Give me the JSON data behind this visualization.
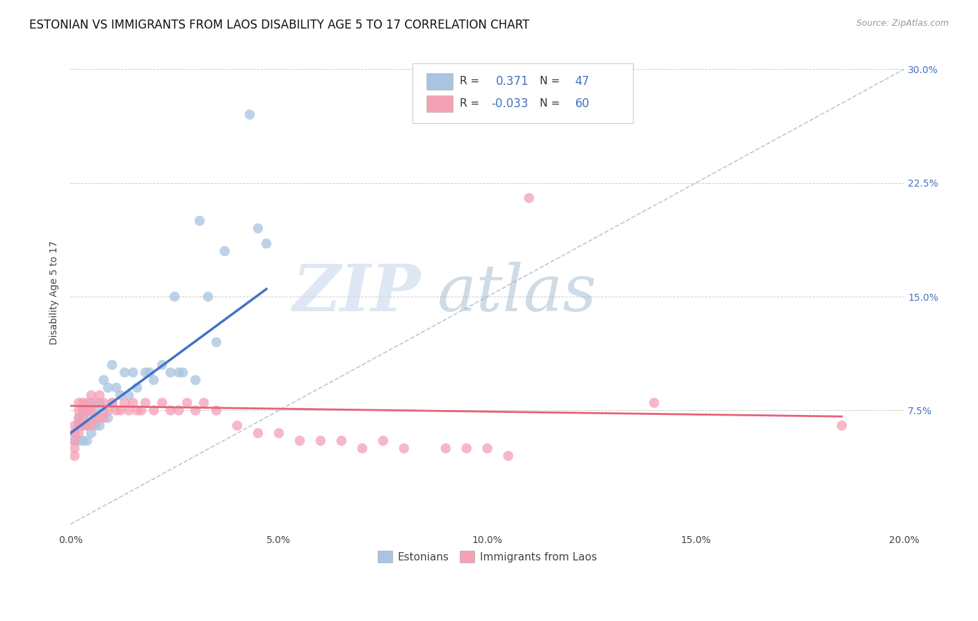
{
  "title": "ESTONIAN VS IMMIGRANTS FROM LAOS DISABILITY AGE 5 TO 17 CORRELATION CHART",
  "source": "Source: ZipAtlas.com",
  "ylabel": "Disability Age 5 to 17",
  "xlabel": "",
  "xlim": [
    0.0,
    0.2
  ],
  "ylim": [
    -0.005,
    0.31
  ],
  "R_estonian": 0.371,
  "N_estonian": 47,
  "R_laos": -0.033,
  "N_laos": 60,
  "color_estonian": "#a8c4e0",
  "color_laos": "#f4a0b5",
  "line_color_estonian": "#4472c4",
  "line_color_laos": "#e8607a",
  "line_color_diagonal": "#b8c8d8",
  "background_color": "#ffffff",
  "title_fontsize": 12,
  "label_fontsize": 10,
  "tick_fontsize": 10,
  "watermark_zip": "ZIP",
  "watermark_atlas": "atlas",
  "estonian_x": [
    0.001,
    0.001,
    0.002,
    0.002,
    0.002,
    0.003,
    0.003,
    0.003,
    0.003,
    0.004,
    0.004,
    0.004,
    0.005,
    0.005,
    0.005,
    0.006,
    0.006,
    0.007,
    0.007,
    0.008,
    0.008,
    0.009,
    0.009,
    0.01,
    0.01,
    0.011,
    0.012,
    0.013,
    0.014,
    0.015,
    0.016,
    0.018,
    0.019,
    0.02,
    0.022,
    0.024,
    0.025,
    0.026,
    0.027,
    0.03,
    0.031,
    0.033,
    0.035,
    0.037,
    0.043,
    0.045,
    0.047
  ],
  "estonian_y": [
    0.06,
    0.055,
    0.07,
    0.065,
    0.055,
    0.075,
    0.07,
    0.065,
    0.055,
    0.075,
    0.065,
    0.055,
    0.08,
    0.07,
    0.06,
    0.075,
    0.065,
    0.08,
    0.065,
    0.095,
    0.075,
    0.09,
    0.07,
    0.105,
    0.08,
    0.09,
    0.085,
    0.1,
    0.085,
    0.1,
    0.09,
    0.1,
    0.1,
    0.095,
    0.105,
    0.1,
    0.15,
    0.1,
    0.1,
    0.095,
    0.2,
    0.15,
    0.12,
    0.18,
    0.27,
    0.195,
    0.185
  ],
  "laos_x": [
    0.001,
    0.001,
    0.001,
    0.001,
    0.001,
    0.002,
    0.002,
    0.002,
    0.002,
    0.002,
    0.003,
    0.003,
    0.003,
    0.003,
    0.004,
    0.004,
    0.004,
    0.005,
    0.005,
    0.005,
    0.006,
    0.006,
    0.007,
    0.007,
    0.008,
    0.008,
    0.009,
    0.01,
    0.011,
    0.012,
    0.013,
    0.014,
    0.015,
    0.016,
    0.017,
    0.018,
    0.02,
    0.022,
    0.024,
    0.026,
    0.028,
    0.03,
    0.032,
    0.035,
    0.04,
    0.045,
    0.05,
    0.055,
    0.06,
    0.065,
    0.07,
    0.075,
    0.08,
    0.09,
    0.095,
    0.1,
    0.105,
    0.11,
    0.14,
    0.185
  ],
  "laos_y": [
    0.065,
    0.06,
    0.055,
    0.05,
    0.045,
    0.08,
    0.075,
    0.07,
    0.065,
    0.06,
    0.08,
    0.075,
    0.07,
    0.065,
    0.08,
    0.075,
    0.065,
    0.085,
    0.075,
    0.065,
    0.08,
    0.07,
    0.085,
    0.07,
    0.08,
    0.07,
    0.075,
    0.08,
    0.075,
    0.075,
    0.08,
    0.075,
    0.08,
    0.075,
    0.075,
    0.08,
    0.075,
    0.08,
    0.075,
    0.075,
    0.08,
    0.075,
    0.08,
    0.075,
    0.065,
    0.06,
    0.06,
    0.055,
    0.055,
    0.055,
    0.05,
    0.055,
    0.05,
    0.05,
    0.05,
    0.05,
    0.045,
    0.215,
    0.08,
    0.065
  ],
  "estonian_line_x": [
    0.0,
    0.047
  ],
  "estonian_line_y": [
    0.06,
    0.155
  ],
  "laos_line_x": [
    0.0,
    0.185
  ],
  "laos_line_y": [
    0.078,
    0.071
  ]
}
